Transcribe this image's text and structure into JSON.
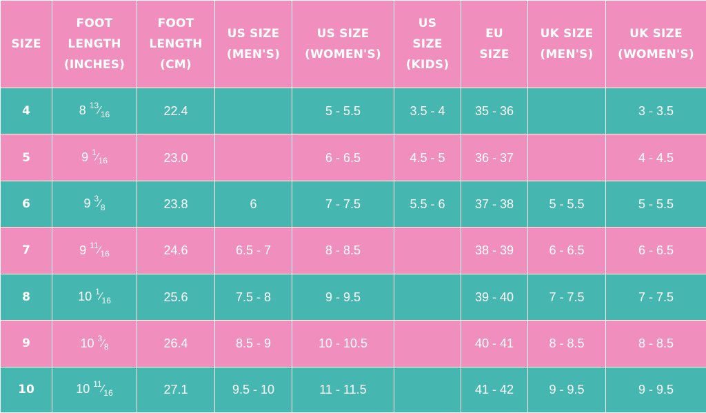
{
  "colors": {
    "header": "#f08fbd",
    "teal_row": "#46b7b0",
    "pink_row": "#f08fbd",
    "text": "#ffffff"
  },
  "headers": [
    [
      "SIZE"
    ],
    [
      "FOOT",
      "LENGTH",
      "(INCHES)"
    ],
    [
      "FOOT",
      "LENGTH",
      "(CM)"
    ],
    [
      "US SIZE",
      "(MEN'S)"
    ],
    [
      "US SIZE",
      "(WOMEN'S)"
    ],
    [
      "US",
      "SIZE",
      "(KIDS)"
    ],
    [
      "EU",
      "SIZE"
    ],
    [
      "UK SIZE",
      "(MEN'S)"
    ],
    [
      "UK SIZE",
      "(WOMEN'S)"
    ]
  ],
  "rows": [
    {
      "size": "4",
      "inch_whole": "8",
      "inch_num": "13",
      "inch_den": "16",
      "cm": "22.4",
      "us_men": "",
      "us_women": "5 - 5.5",
      "us_kids": "3.5 - 4",
      "eu": "35 - 36",
      "uk_men": "",
      "uk_women": "3 - 3.5"
    },
    {
      "size": "5",
      "inch_whole": "9",
      "inch_num": "1",
      "inch_den": "16",
      "cm": "23.0",
      "us_men": "",
      "us_women": "6 - 6.5",
      "us_kids": "4.5 - 5",
      "eu": "36 - 37",
      "uk_men": "",
      "uk_women": "4 - 4.5"
    },
    {
      "size": "6",
      "inch_whole": "9",
      "inch_num": "3",
      "inch_den": "8",
      "cm": "23.8",
      "us_men": "6",
      "us_women": "7 - 7.5",
      "us_kids": "5.5 - 6",
      "eu": "37 - 38",
      "uk_men": "5 - 5.5",
      "uk_women": "5 - 5.5"
    },
    {
      "size": "7",
      "inch_whole": "9",
      "inch_num": "11",
      "inch_den": "16",
      "cm": "24.6",
      "us_men": "6.5 - 7",
      "us_women": "8 - 8.5",
      "us_kids": "",
      "eu": "38 - 39",
      "uk_men": "6 - 6.5",
      "uk_women": "6 - 6.5"
    },
    {
      "size": "8",
      "inch_whole": "10",
      "inch_num": "1",
      "inch_den": "16",
      "cm": "25.6",
      "us_men": "7.5 - 8",
      "us_women": "9 - 9.5",
      "us_kids": "",
      "eu": "39 - 40",
      "uk_men": "7 - 7.5",
      "uk_women": "7 - 7.5"
    },
    {
      "size": "9",
      "inch_whole": "10",
      "inch_num": "3",
      "inch_den": "8",
      "cm": "26.4",
      "us_men": "8.5 - 9",
      "us_women": "10 - 10.5",
      "us_kids": "",
      "eu": "40 - 41",
      "uk_men": "8 - 8.5",
      "uk_women": "8 - 8.5"
    },
    {
      "size": "10",
      "inch_whole": "10",
      "inch_num": "11",
      "inch_den": "16",
      "cm": "27.1",
      "us_men": "9.5 - 10",
      "us_women": "11 - 11.5",
      "us_kids": "",
      "eu": "41 - 42",
      "uk_men": "9 - 9.5",
      "uk_women": "9 - 9.5"
    }
  ]
}
